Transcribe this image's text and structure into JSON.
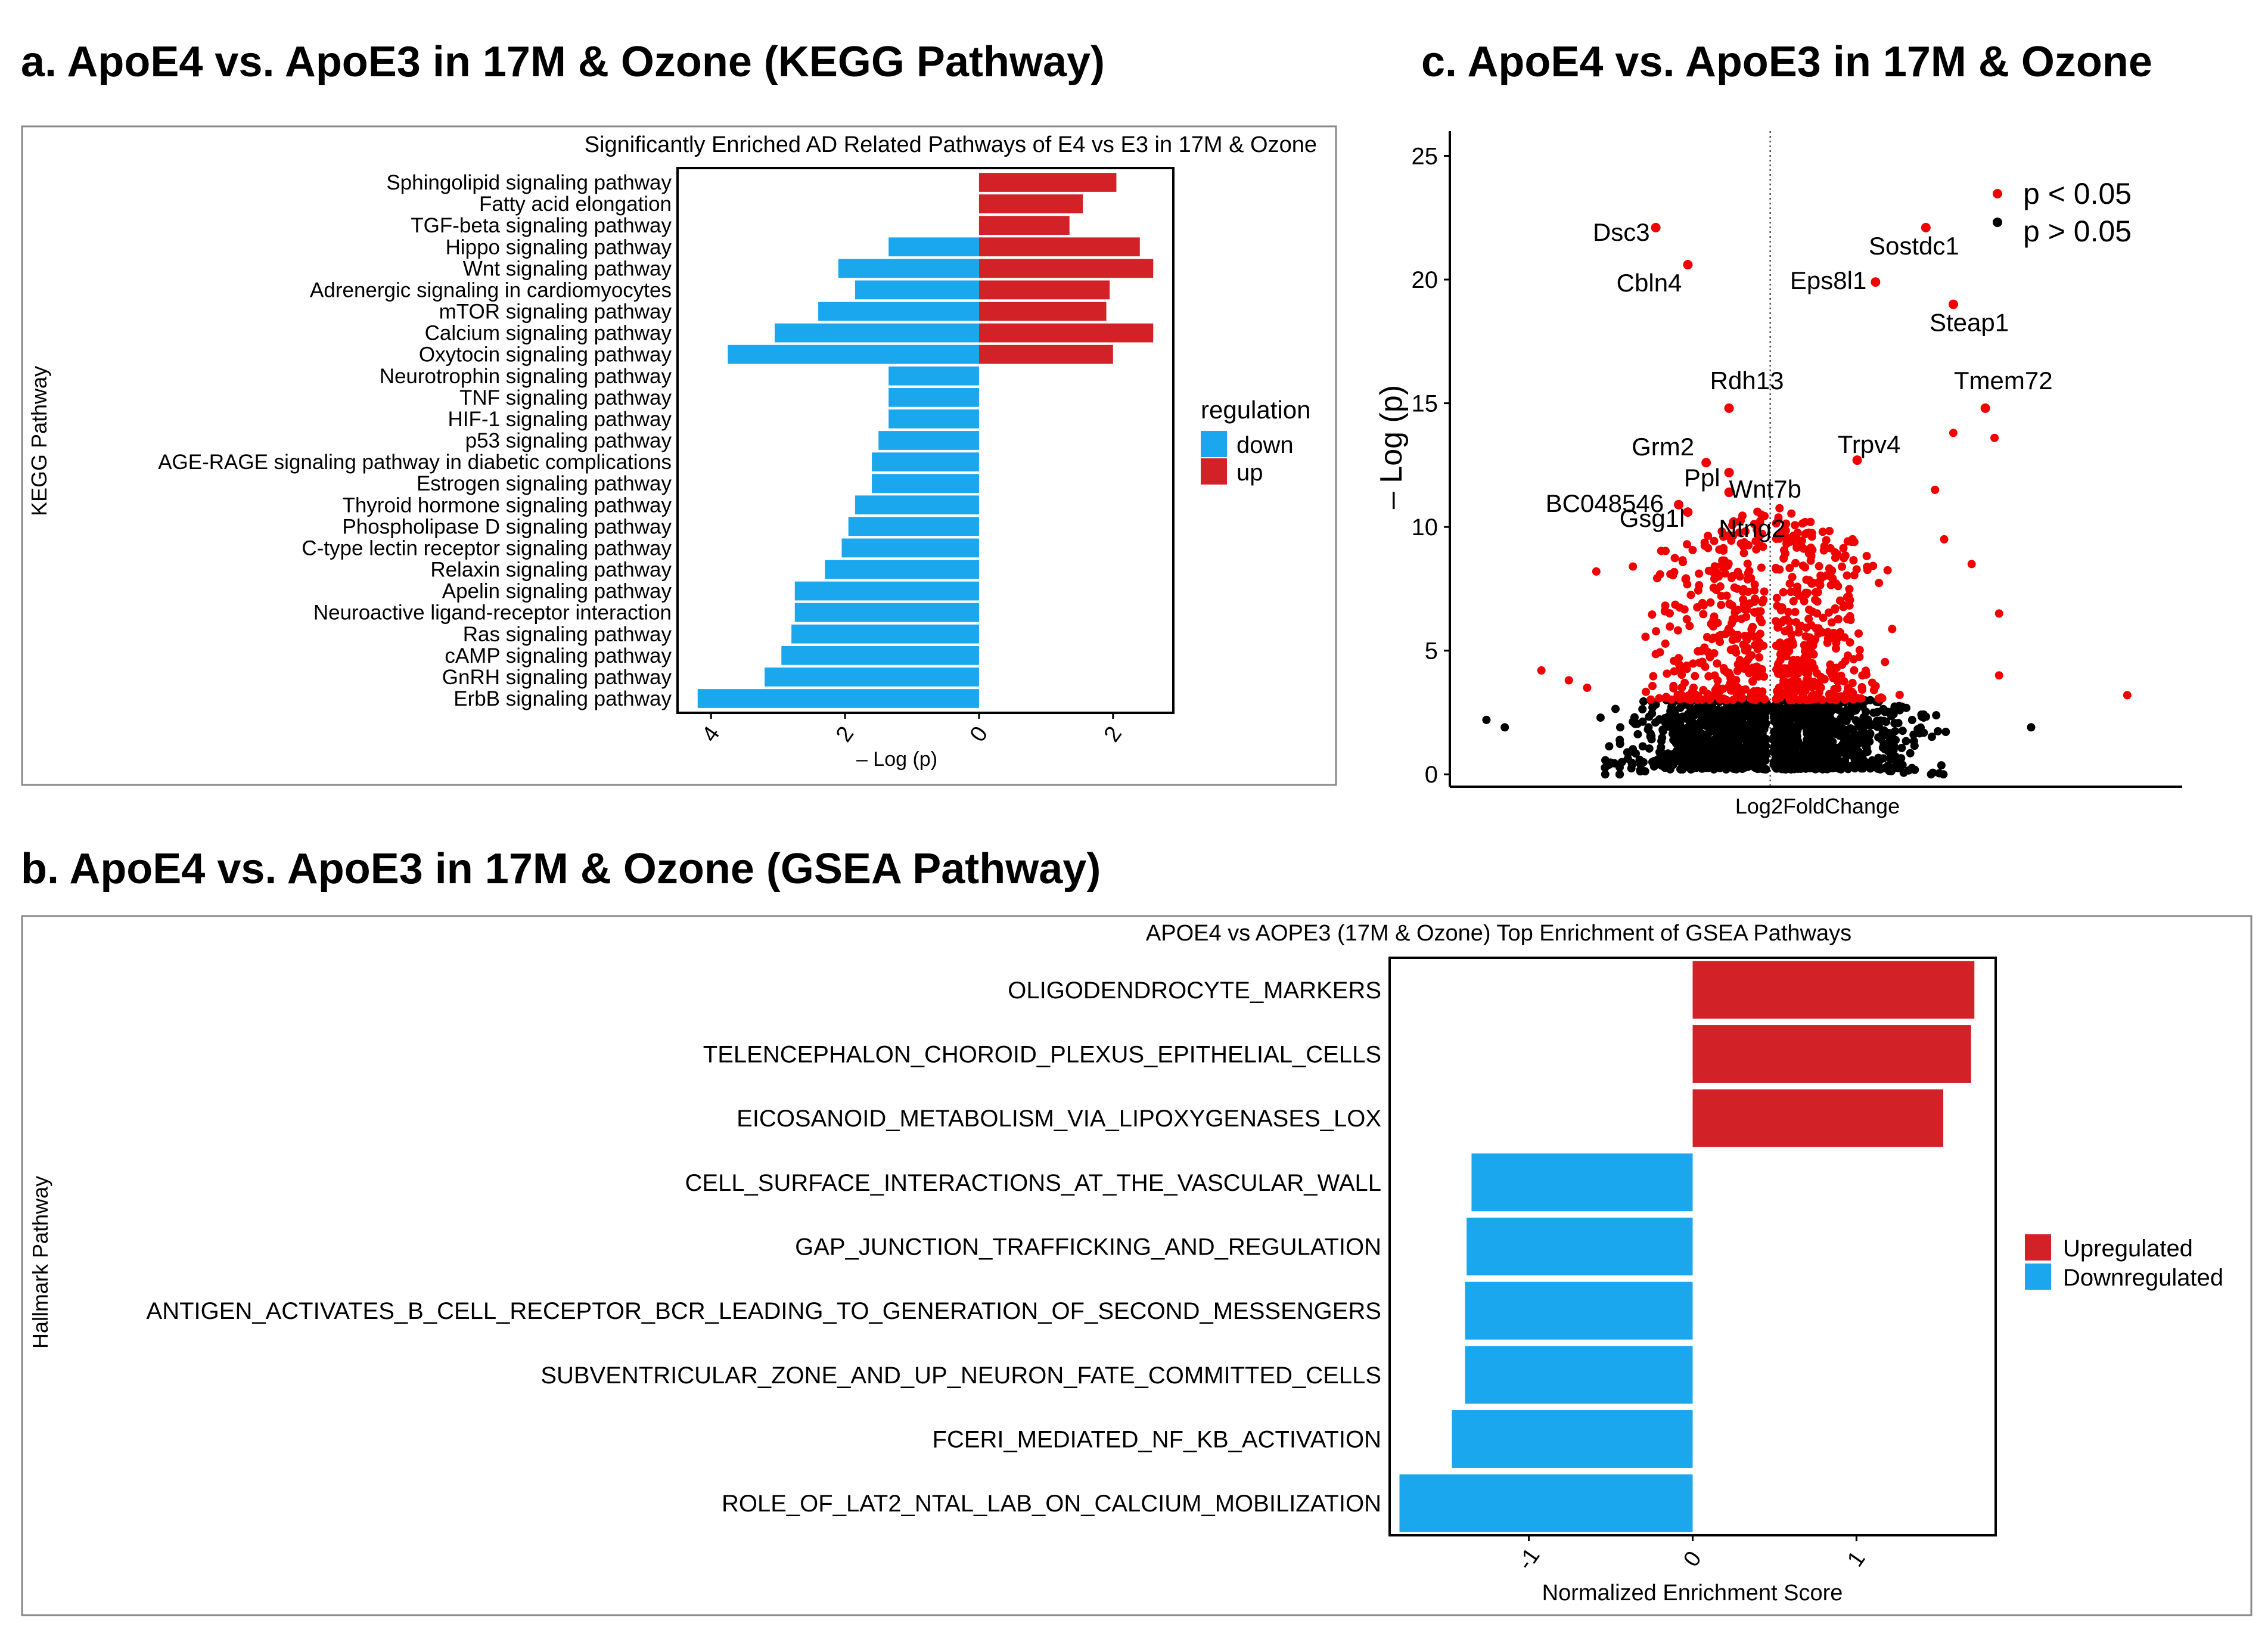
{
  "chart_data": [
    {
      "panel": "a",
      "heading": "a. ApoE4 vs. ApoE3 in 17M & Ozone (KEGG Pathway)",
      "type": "bar",
      "orientation": "horizontal",
      "title": "Significantly Enriched AD Related Pathways of E4 vs E3 in 17M & Ozone",
      "xlabel": "– Log (p)",
      "ylabel": "KEGG Pathway",
      "xlim": [
        -4.5,
        2.9
      ],
      "xticks": [
        -4,
        -2,
        0,
        2
      ],
      "xtick_labels": [
        "4",
        "2",
        "0",
        "2"
      ],
      "legend": {
        "title": "regulation",
        "placement": "right",
        "entries": [
          "down",
          "up"
        ]
      },
      "categories": [
        "Sphingolipid signaling pathway",
        "Fatty acid elongation",
        "TGF-beta signaling pathway",
        "Hippo signaling pathway",
        "Wnt signaling pathway",
        "Adrenergic signaling in cardiomyocytes",
        "mTOR signaling pathway",
        "Calcium signaling pathway",
        "Oxytocin signaling pathway",
        "Neurotrophin signaling pathway",
        "TNF signaling pathway",
        "HIF-1 signaling pathway",
        "p53 signaling pathway",
        "AGE-RAGE signaling pathway in diabetic complications",
        "Estrogen signaling pathway",
        "Thyroid hormone signaling pathway",
        "Phospholipase D signaling pathway",
        "C-type lectin receptor signaling pathway",
        "Relaxin signaling pathway",
        "Apelin signaling pathway",
        "Neuroactive ligand-receptor interaction",
        "Ras signaling pathway",
        "cAMP signaling pathway",
        "GnRH signaling pathway",
        "ErbB signaling pathway"
      ],
      "series": [
        {
          "name": "down",
          "values": [
            0,
            0,
            0,
            -1.35,
            -2.1,
            -1.85,
            -2.4,
            -3.05,
            -3.75,
            -1.35,
            -1.35,
            -1.35,
            -1.5,
            -1.6,
            -1.6,
            -1.85,
            -1.95,
            -2.05,
            -2.3,
            -2.75,
            -2.75,
            -2.8,
            -2.95,
            -3.2,
            -4.2
          ]
        },
        {
          "name": "up",
          "values": [
            2.05,
            1.55,
            1.35,
            2.4,
            2.6,
            1.95,
            1.9,
            2.6,
            2.0,
            0,
            0,
            0,
            0,
            0,
            0,
            0,
            0,
            0,
            0,
            0,
            0,
            0,
            0,
            0,
            0
          ]
        }
      ]
    },
    {
      "panel": "b",
      "heading": "b. ApoE4 vs. ApoE3 in 17M & Ozone (GSEA Pathway)",
      "type": "bar",
      "orientation": "horizontal",
      "title": "APOE4 vs AOPE3 (17M & Ozone) Top Enrichment of GSEA Pathways",
      "xlabel": "Normalized Enrichment Score",
      "ylabel": "Hallmark Pathway",
      "xlim": [
        -1.85,
        1.85
      ],
      "xticks": [
        -1,
        0,
        1
      ],
      "xtick_labels": [
        "-1",
        "0",
        "1"
      ],
      "legend": {
        "placement": "right",
        "entries": [
          "Upregulated",
          "Downregulated"
        ]
      },
      "categories": [
        "OLIGODENDROCYTE_MARKERS",
        "TELENCEPHALON_CHOROID_PLEXUS_EPITHELIAL_CELLS",
        "EICOSANOID_METABOLISM_VIA_LIPOXYGENASES_LOX",
        "CELL_SURFACE_INTERACTIONS_AT_THE_VASCULAR_WALL",
        "GAP_JUNCTION_TRAFFICKING_AND_REGULATION",
        "ANTIGEN_ACTIVATES_B_CELL_RECEPTOR_BCR_LEADING_TO_GENERATION_OF_SECOND_MESSENGERS",
        "SUBVENTRICULAR_ZONE_AND_UP_NEURON_FATE_COMMITTED_CELLS",
        "FCERI_MEDIATED_NF_KB_ACTIVATION",
        "ROLE_OF_LAT2_NTAL_LAB_ON_CALCIUM_MOBILIZATION"
      ],
      "values": [
        1.72,
        1.7,
        1.53,
        -1.35,
        -1.38,
        -1.39,
        -1.39,
        -1.47,
        -1.79
      ],
      "groups": [
        "Upregulated",
        "Upregulated",
        "Upregulated",
        "Downregulated",
        "Downregulated",
        "Downregulated",
        "Downregulated",
        "Downregulated",
        "Downregulated"
      ]
    },
    {
      "panel": "c",
      "heading": "c. ApoE4 vs. ApoE3 in 17M & Ozone",
      "type": "scatter",
      "subtype": "volcano",
      "xlabel": "Log2FoldChange",
      "ylabel": "– Log (p)",
      "xlim": [
        -3.5,
        4.5
      ],
      "ylim": [
        -0.5,
        26
      ],
      "yticks": [
        0,
        5,
        10,
        15,
        20,
        25
      ],
      "threshold_x": 0,
      "legend": {
        "placement": "top-right",
        "entries": [
          "p < 0.05",
          "p > 0.05"
        ]
      },
      "labeled_points": [
        {
          "label": "Dsc3",
          "x": -1.25,
          "y": 22.1
        },
        {
          "label": "Cbln4",
          "x": -0.9,
          "y": 20.6
        },
        {
          "label": "Sostdc1",
          "x": 1.7,
          "y": 22.1
        },
        {
          "label": "Eps8l1",
          "x": 1.15,
          "y": 19.9
        },
        {
          "label": "Steap1",
          "x": 2.0,
          "y": 19.0
        },
        {
          "label": "Rdh13",
          "x": -0.45,
          "y": 14.8
        },
        {
          "label": "Tmem72",
          "x": 2.35,
          "y": 14.8
        },
        {
          "label": "Grm2",
          "x": -0.7,
          "y": 12.6
        },
        {
          "label": "Wnt7b",
          "x": -0.45,
          "y": 12.2
        },
        {
          "label": "Trpv4",
          "x": 0.95,
          "y": 12.7
        },
        {
          "label": "BC048546",
          "x": -1.0,
          "y": 10.9
        },
        {
          "label": "Ppl",
          "x": -0.45,
          "y": 11.4
        },
        {
          "label": "Gsg1l",
          "x": -0.9,
          "y": 10.6
        },
        {
          "label": "Ntng2",
          "x": -0.4,
          "y": 10.2
        }
      ]
    }
  ],
  "colors": {
    "down": "#1aa7ee",
    "up": "#d32128",
    "significant": "#f00000",
    "nonsignificant": "#000000"
  }
}
